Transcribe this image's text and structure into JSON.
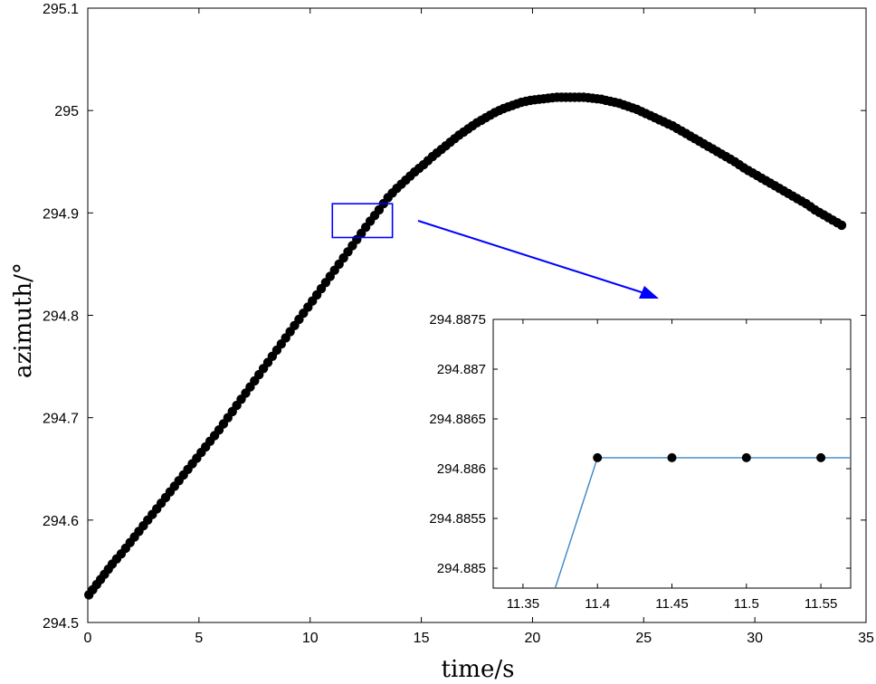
{
  "chart_data": [
    {
      "type": "scatter",
      "title": "",
      "xlabel": "time/s",
      "ylabel": "azimuth/°",
      "xlim": [
        0,
        35
      ],
      "ylim": [
        294.5,
        295.1
      ],
      "xticks": [
        "0",
        "5",
        "10",
        "15",
        "20",
        "25",
        "30",
        "35"
      ],
      "yticks": [
        "294.5",
        "294.6",
        "294.7",
        "294.8",
        "294.9",
        "295",
        "295.1"
      ],
      "grid": false,
      "series": [
        {
          "marker": "circle",
          "color": "#000000",
          "x": [
            0.05,
            0.4,
            0.75,
            1.1,
            1.5,
            1.9,
            2.3,
            2.7,
            3.1,
            3.5,
            3.9,
            4.3,
            4.7,
            5.1,
            5.5,
            5.9,
            6.3,
            6.7,
            7.1,
            7.5,
            7.9,
            8.3,
            8.7,
            9.1,
            9.5,
            9.9,
            10.3,
            10.7,
            11.1,
            11.5,
            11.9,
            12.3,
            12.7,
            13.1,
            13.5,
            13.9,
            14.3,
            14.7,
            15.1,
            15.5,
            15.9,
            16.3,
            16.7,
            17.1,
            17.5,
            17.9,
            18.3,
            18.7,
            19.1,
            19.5,
            19.9,
            20.3,
            20.7,
            21.1,
            21.5,
            21.9,
            22.3,
            22.7,
            23.1,
            23.5,
            23.9,
            24.3,
            24.7,
            25.1,
            25.5,
            25.9,
            26.3,
            26.7,
            27.1,
            27.5,
            27.9,
            28.3,
            28.7,
            29.1,
            29.5,
            29.9,
            30.3,
            30.7,
            31.1,
            31.5,
            31.9,
            32.3,
            32.7,
            33.1,
            33.5,
            33.9
          ],
          "y": [
            294.527,
            294.537,
            294.547,
            294.557,
            294.567,
            294.578,
            294.589,
            294.6,
            294.611,
            294.622,
            294.633,
            294.644,
            294.655,
            294.666,
            294.677,
            294.688,
            294.7,
            294.712,
            294.724,
            294.736,
            294.748,
            294.76,
            294.772,
            294.784,
            294.796,
            294.808,
            294.82,
            294.832,
            294.844,
            294.856,
            294.868,
            294.88,
            294.892,
            294.903,
            294.915,
            294.924,
            294.932,
            294.94,
            294.947,
            294.955,
            294.962,
            294.969,
            294.976,
            294.982,
            294.988,
            294.993,
            294.998,
            295.002,
            295.005,
            295.008,
            295.01,
            295.011,
            295.012,
            295.013,
            295.013,
            295.013,
            295.013,
            295.012,
            295.011,
            295.009,
            295.007,
            295.004,
            295.001,
            294.997,
            294.993,
            294.989,
            294.985,
            294.98,
            294.975,
            294.97,
            294.965,
            294.96,
            294.955,
            294.95,
            294.944,
            294.939,
            294.934,
            294.929,
            294.924,
            294.919,
            294.914,
            294.909,
            294.903,
            294.898,
            294.893,
            294.888
          ]
        }
      ],
      "annotations": {
        "zoom_box": {
          "x": [
            11,
            13.7
          ],
          "y": [
            294.876,
            294.909
          ],
          "color": "#0000ff"
        },
        "arrow_color": "#0000ff"
      }
    },
    {
      "type": "line",
      "title": "",
      "xlim": [
        11.33,
        11.57
      ],
      "ylim": [
        294.8848,
        294.8875
      ],
      "xticks": [
        "11.35",
        "11.4",
        "11.45",
        "11.5",
        "11.55"
      ],
      "yticks": [
        "294.885",
        "294.8855",
        "294.886",
        "294.8865",
        "294.887",
        "294.8875"
      ],
      "grid": false,
      "series": [
        {
          "color": "#3a86c8",
          "marker": "circle",
          "marker_color": "#000000",
          "x": [
            11.35,
            11.4,
            11.45,
            11.5,
            11.55,
            11.57
          ],
          "y": [
            294.8838,
            294.88611,
            294.88611,
            294.88611,
            294.88611,
            294.88611
          ],
          "marker_x": [
            11.4,
            11.45,
            11.5,
            11.55
          ],
          "marker_y": [
            294.88611,
            294.88611,
            294.88611,
            294.88611
          ]
        }
      ]
    }
  ]
}
